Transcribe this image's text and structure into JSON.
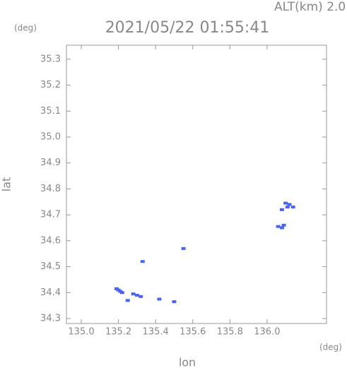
{
  "chart_data": {
    "type": "scatter",
    "title": "2021/05/22 01:55:41",
    "subtitle": "ALT(km) 2.0",
    "x_unit": "(deg)",
    "y_unit": "(deg)",
    "x_label": "lon",
    "y_label": "lat",
    "x": [
      135.19,
      135.2,
      135.21,
      135.22,
      135.25,
      135.28,
      135.3,
      135.32,
      135.55,
      136.06,
      136.08,
      136.09,
      136.08,
      136.1,
      136.11,
      136.12,
      136.14,
      135.33,
      135.42,
      135.5
    ],
    "y": [
      34.415,
      34.41,
      34.405,
      34.4,
      34.37,
      34.395,
      34.39,
      34.385,
      34.57,
      34.655,
      34.65,
      34.66,
      34.72,
      34.745,
      34.73,
      34.74,
      34.73,
      34.52,
      34.375,
      34.365
    ],
    "color": "#4a63f0",
    "xlim": [
      134.92,
      136.32
    ],
    "ylim": [
      34.281,
      35.354
    ],
    "xticks": [
      {
        "value": 135.0,
        "label": "135.0"
      },
      135.2,
      135.4,
      135.6,
      135.8,
      {
        "value": 136.0,
        "label": "136.0"
      }
    ],
    "yticks": [
      34.3,
      34.4,
      34.5,
      34.6,
      34.7,
      34.8,
      34.9,
      {
        "value": 35.0,
        "label": "35.0"
      },
      35.1,
      35.2,
      35.3
    ]
  }
}
